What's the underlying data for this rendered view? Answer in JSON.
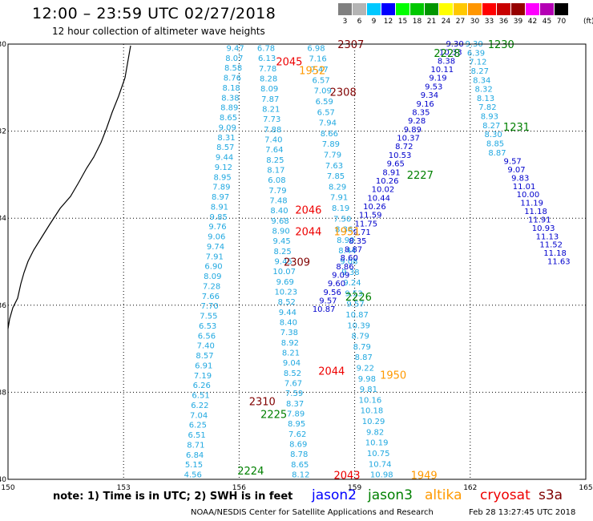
{
  "header": {
    "title": "12:00 – 23:59 UTC 02/27/2018",
    "subtitle": "12 hour collection of altimeter wave heights"
  },
  "legend": {
    "unit": "(ft)",
    "items": [
      {
        "label": "3",
        "color": "#808080"
      },
      {
        "label": "6",
        "color": "#b4b4b4"
      },
      {
        "label": "9",
        "color": "#00c8ff"
      },
      {
        "label": "12",
        "color": "#0000ff"
      },
      {
        "label": "15",
        "color": "#00ff00"
      },
      {
        "label": "18",
        "color": "#00c800"
      },
      {
        "label": "21",
        "color": "#009600"
      },
      {
        "label": "24",
        "color": "#ffff00"
      },
      {
        "label": "27",
        "color": "#ffc800"
      },
      {
        "label": "30",
        "color": "#ff9600"
      },
      {
        "label": "33",
        "color": "#ff0000"
      },
      {
        "label": "36",
        "color": "#c80000"
      },
      {
        "label": "39",
        "color": "#960000"
      },
      {
        "label": "42",
        "color": "#ff00ff"
      },
      {
        "label": "45",
        "color": "#b400b4"
      },
      {
        "label": "70",
        "color": "#000000"
      }
    ]
  },
  "map": {
    "lon_labels": [
      "150",
      "153",
      "156",
      "159",
      "162",
      "165"
    ],
    "lat_labels": [
      "-30",
      "-32",
      "-34",
      "-36",
      "-38",
      "-40"
    ],
    "colors": {
      "light": "#20a8e0",
      "dark": "#0000cc",
      "orange": "#ff9900",
      "red": "#ee0000",
      "darkred": "#800000",
      "green": "#008000",
      "cyan": "#00e0ff",
      "yellowgreen": "#b4e000",
      "coast": "#000000"
    },
    "passes": [
      {
        "label": "2307",
        "lon": 158.9,
        "lat": -30.0,
        "color": "darkred"
      },
      {
        "label": "2308",
        "lon": 158.7,
        "lat": -31.1,
        "color": "darkred"
      },
      {
        "label": "2309",
        "lon": 157.5,
        "lat": -35.0,
        "color": "darkred"
      },
      {
        "label": "2310",
        "lon": 156.6,
        "lat": -38.2,
        "color": "darkred"
      },
      {
        "label": "2045",
        "lon": 157.3,
        "lat": -30.4,
        "color": "red"
      },
      {
        "label": "2046",
        "lon": 157.8,
        "lat": -33.8,
        "color": "red"
      },
      {
        "label": "2044",
        "lon": 157.8,
        "lat": -34.3,
        "color": "red"
      },
      {
        "label": "2044",
        "lon": 158.4,
        "lat": -37.5,
        "color": "red"
      },
      {
        "label": "2043",
        "lon": 158.8,
        "lat": -39.9,
        "color": "red"
      },
      {
        "label": "1952",
        "lon": 157.9,
        "lat": -30.6,
        "color": "orange"
      },
      {
        "label": "1951",
        "lon": 158.8,
        "lat": -34.3,
        "color": "orange"
      },
      {
        "label": "1950",
        "lon": 160.0,
        "lat": -37.6,
        "color": "orange"
      },
      {
        "label": "1949",
        "lon": 160.8,
        "lat": -39.9,
        "color": "orange"
      },
      {
        "label": "2228",
        "lon": 161.4,
        "lat": -30.2,
        "color": "green"
      },
      {
        "label": "1230",
        "lon": 162.8,
        "lat": -30.0,
        "color": "green"
      },
      {
        "label": "1231",
        "lon": 163.2,
        "lat": -31.9,
        "color": "green"
      },
      {
        "label": "2227",
        "lon": 160.7,
        "lat": -33.0,
        "color": "green"
      },
      {
        "label": "2226",
        "lon": 159.1,
        "lat": -35.8,
        "color": "green"
      },
      {
        "label": "2225",
        "lon": 156.9,
        "lat": -38.5,
        "color": "green"
      },
      {
        "label": "2224",
        "lon": 156.3,
        "lat": -39.8,
        "color": "green"
      }
    ],
    "tracks": [
      {
        "color": "light",
        "values": [
          "9.47",
          "8.07",
          "8.58",
          "8.76",
          "8.18",
          "8.38",
          "8.89",
          "8.65",
          "9.09",
          "8.31",
          "8.57",
          "9.44",
          "9.12",
          "8.95",
          "7.89",
          "8.97",
          "8.91",
          "9.85",
          "9.76",
          "9.06",
          "9.74",
          "7.91",
          "6.90",
          "8.09",
          "7.28",
          "7.66",
          "7.70",
          "7.55",
          "6.53",
          "6.56",
          "7.40",
          "8.57",
          "6.91",
          "7.19",
          "6.26",
          "6.51",
          "6.22",
          "7.04",
          "6.25",
          "6.51",
          "8.71",
          "6.84",
          "5.15",
          "4.56"
        ],
        "lon0": 155.9,
        "lat0": -30.1,
        "lon1": 154.8,
        "lat1": -39.9
      },
      {
        "color": "light",
        "values": [
          "6.78",
          "6.13",
          "7.78",
          "8.28",
          "8.09",
          "7.87",
          "8.21",
          "7.73",
          "7.88",
          "7.40",
          "7.64",
          "8.25",
          "8.17",
          "6.08",
          "7.79",
          "7.48",
          "8.40",
          "9.68",
          "8.90",
          "9.45",
          "8.25",
          "9.45",
          "10.07",
          "9.69",
          "10.23",
          "8.52",
          "9.44",
          "8.40",
          "7.38",
          "8.92",
          "8.21",
          "9.04",
          "8.52",
          "7.67",
          "7.59",
          "8.37",
          "7.89",
          "8.95",
          "7.62",
          "8.69",
          "8.78",
          "8.65",
          "8.12"
        ],
        "lon0": 156.7,
        "lat0": -30.1,
        "lon1": 157.6,
        "lat1": -39.9
      },
      {
        "color": "light",
        "values": [
          "6.98",
          "7.16",
          "7.47",
          "6.57",
          "7.09",
          "6.59",
          "6.57",
          "7.94",
          "8.66",
          "7.89",
          "7.79",
          "7.63",
          "7.85",
          "8.29",
          "7.91",
          "8.19",
          "7.50",
          "8.36",
          "8.90",
          "8.44",
          "9.08",
          "9.38",
          "9.24",
          "9.53",
          "9.57",
          "10.87",
          "10.39",
          "8.79",
          "8.79",
          "8.87",
          "9.22",
          "9.98",
          "9.81",
          "10.16",
          "10.18",
          "10.29",
          "9.82",
          "10.19",
          "10.75",
          "10.74",
          "10.98"
        ],
        "lon0": 158.0,
        "lat0": -30.1,
        "lon1": 159.7,
        "lat1": -39.9
      },
      {
        "color": "dark",
        "values": [
          "9.30",
          "10.33",
          "8.38",
          "10.11",
          "9.19",
          "9.53",
          "9.34",
          "9.16",
          "8.35",
          "9.28",
          "9.89",
          "10.37",
          "8.72",
          "10.53",
          "9.65",
          "8.91",
          "10.26",
          "10.02",
          "10.44",
          "10.26",
          "11.59",
          "11.75",
          "9.71",
          "8.35",
          "8.87",
          "8.60",
          "8.86",
          "9.09",
          "9.60",
          "9.56",
          "9.57",
          "10.87"
        ],
        "lon0": 161.6,
        "lat0": -30.0,
        "lon1": 158.2,
        "lat1": -36.1
      },
      {
        "color": "light",
        "values": [
          "9.30",
          "6.39",
          "7.12",
          "8.27",
          "8.34",
          "8.32",
          "8.13",
          "7.82",
          "8.93",
          "8.27",
          "8.30",
          "8.85",
          "8.87"
        ],
        "lon0": 162.1,
        "lat0": -30.0,
        "lon1": 162.7,
        "lat1": -32.5
      },
      {
        "color": "dark",
        "values": [
          "9.57",
          "9.07",
          "9.83",
          "11.01",
          "10.00",
          "11.19",
          "11.18",
          "11.91",
          "10.93",
          "11.13",
          "11.52",
          "11.18",
          "11.63"
        ],
        "lon0": 163.1,
        "lat0": -32.7,
        "lon1": 164.3,
        "lat1": -35.0
      }
    ]
  },
  "footer": {
    "note": "note: 1) Time is in UTC; 2) SWH is in feet",
    "satellites": [
      {
        "name": "jason2",
        "color": "#0000ff"
      },
      {
        "name": "jason3",
        "color": "#008000"
      },
      {
        "name": "altika",
        "color": "#ff9900"
      },
      {
        "name": "cryosat",
        "color": "#ee0000"
      },
      {
        "name": "s3a",
        "color": "#800000"
      }
    ],
    "credit": "NOAA/NESDIS Center for Satellite Applications and Research",
    "generated": "Feb 28 13:27:45 UTC 2018"
  }
}
